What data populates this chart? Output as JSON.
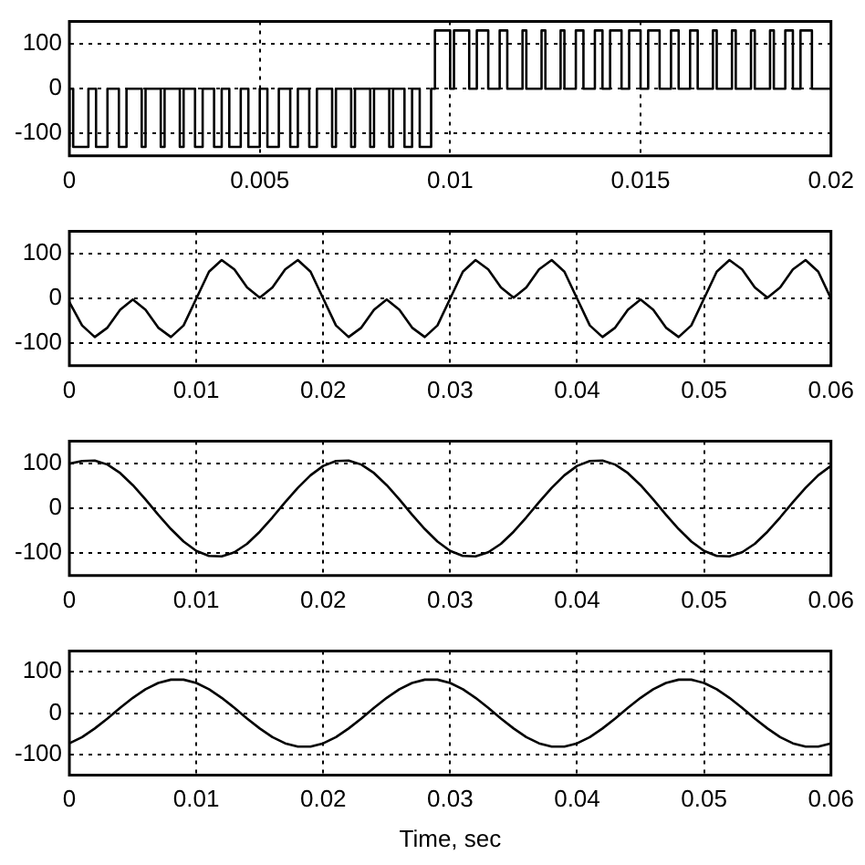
{
  "chart_data": [
    {
      "type": "step",
      "color": "#000000",
      "marker": "none",
      "grid": true,
      "legend": false,
      "x": [
        0,
        0.0001,
        0.0005,
        0.0007,
        0.001,
        0.0013,
        0.0015,
        0.0019,
        0.002,
        0.0024,
        0.0025,
        0.0029,
        0.003,
        0.0033,
        0.0035,
        0.0038,
        0.004,
        0.0042,
        0.0045,
        0.0047,
        0.005,
        0.0052,
        0.0055,
        0.0058,
        0.006,
        0.0063,
        0.0065,
        0.0069,
        0.007,
        0.0074,
        0.0075,
        0.0079,
        0.008,
        0.0084,
        0.0085,
        0.0088,
        0.009,
        0.0092,
        0.0095,
        0.0096,
        0.01,
        0.0101,
        0.0105,
        0.0107,
        0.011,
        0.0113,
        0.0115,
        0.0119,
        0.012,
        0.0124,
        0.0125,
        0.0129,
        0.013,
        0.0133,
        0.0135,
        0.0138,
        0.014,
        0.0142,
        0.0145,
        0.0147,
        0.015,
        0.0152,
        0.0155,
        0.0158,
        0.016,
        0.0163,
        0.0165,
        0.0169,
        0.017,
        0.0174,
        0.0175,
        0.0179,
        0.018,
        0.0184,
        0.0185,
        0.0188,
        0.019,
        0.0192,
        0.0195,
        0.0196,
        0.02
      ],
      "values": [
        -130,
        0,
        -130,
        0,
        -130,
        0,
        -130,
        0,
        -130,
        0,
        -130,
        0,
        -130,
        0,
        -130,
        0,
        -130,
        0,
        -130,
        0,
        -130,
        0,
        -130,
        0,
        -130,
        0,
        -130,
        0,
        -130,
        0,
        -130,
        0,
        -130,
        0,
        -130,
        0,
        -130,
        0,
        -130,
        0,
        130,
        0,
        130,
        0,
        130,
        0,
        130,
        0,
        130,
        0,
        130,
        0,
        130,
        0,
        130,
        0,
        130,
        0,
        130,
        0,
        130,
        0,
        130,
        0,
        130,
        0,
        130,
        0,
        130,
        0,
        130,
        0,
        130,
        0,
        130,
        0,
        130,
        0,
        130,
        0,
        0
      ],
      "xlim": [
        0,
        0.02
      ],
      "xticks": [
        0,
        0.005,
        0.01,
        0.015,
        0.02
      ],
      "ylim": [
        -150,
        150
      ],
      "yticks": [
        -100,
        0,
        100
      ]
    },
    {
      "type": "line",
      "color": "#000000",
      "marker": "none",
      "grid": true,
      "legend": false,
      "x": [
        0,
        0.001,
        0.002,
        0.003,
        0.004,
        0.005,
        0.006,
        0.007,
        0.008,
        0.009,
        0.01,
        0.011,
        0.012,
        0.013,
        0.014,
        0.015,
        0.016,
        0.017,
        0.018,
        0.019,
        0.02,
        0.021,
        0.022,
        0.023,
        0.024,
        0.025,
        0.026,
        0.027,
        0.028,
        0.029,
        0.03,
        0.031,
        0.032,
        0.033,
        0.034,
        0.035,
        0.036,
        0.037,
        0.038,
        0.039,
        0.04,
        0.041,
        0.042,
        0.043,
        0.044,
        0.045,
        0.046,
        0.047,
        0.048,
        0.049,
        0.05,
        0.051,
        0.052,
        0.053,
        0.054,
        0.055,
        0.056,
        0.057,
        0.058,
        0.059,
        0.06
      ],
      "values": [
        -8,
        -60,
        -86,
        -65,
        -25,
        -2,
        -25,
        -65,
        -86,
        -60,
        0,
        60,
        86,
        65,
        25,
        2,
        25,
        65,
        86,
        60,
        0,
        -60,
        -86,
        -65,
        -25,
        -2,
        -25,
        -65,
        -86,
        -60,
        0,
        60,
        86,
        65,
        25,
        2,
        25,
        65,
        86,
        60,
        0,
        -60,
        -86,
        -65,
        -25,
        -2,
        -25,
        -65,
        -86,
        -60,
        0,
        60,
        86,
        65,
        25,
        2,
        25,
        65,
        86,
        60,
        0
      ],
      "xlim": [
        0,
        0.06
      ],
      "xticks": [
        0,
        0.01,
        0.02,
        0.03,
        0.04,
        0.05,
        0.06
      ],
      "ylim": [
        -150,
        150
      ],
      "yticks": [
        -100,
        0,
        100
      ]
    },
    {
      "type": "line",
      "color": "#000000",
      "marker": "none",
      "grid": true,
      "legend": false,
      "x": [
        0,
        0.001,
        0.002,
        0.003,
        0.004,
        0.005,
        0.006,
        0.007,
        0.008,
        0.009,
        0.01,
        0.011,
        0.012,
        0.013,
        0.014,
        0.015,
        0.016,
        0.017,
        0.018,
        0.019,
        0.02,
        0.021,
        0.022,
        0.023,
        0.024,
        0.025,
        0.026,
        0.027,
        0.028,
        0.029,
        0.03,
        0.031,
        0.032,
        0.033,
        0.034,
        0.035,
        0.036,
        0.037,
        0.038,
        0.039,
        0.04,
        0.041,
        0.042,
        0.043,
        0.044,
        0.045,
        0.046,
        0.047,
        0.048,
        0.049,
        0.05,
        0.051,
        0.052,
        0.053,
        0.054,
        0.055,
        0.056,
        0.057,
        0.058,
        0.059,
        0.06
      ],
      "values": [
        100,
        106,
        107,
        98,
        79,
        52,
        20,
        -14,
        -46,
        -74,
        -95,
        -106,
        -107,
        -98,
        -79,
        -52,
        -20,
        14,
        46,
        74,
        95,
        106,
        107,
        98,
        79,
        52,
        20,
        -14,
        -46,
        -74,
        -95,
        -106,
        -107,
        -98,
        -79,
        -52,
        -20,
        14,
        46,
        74,
        95,
        106,
        107,
        98,
        79,
        52,
        20,
        -14,
        -46,
        -74,
        -95,
        -106,
        -107,
        -98,
        -79,
        -52,
        -20,
        14,
        46,
        74,
        95
      ],
      "xlim": [
        0,
        0.06
      ],
      "xticks": [
        0,
        0.01,
        0.02,
        0.03,
        0.04,
        0.05,
        0.06
      ],
      "ylim": [
        -150,
        150
      ],
      "yticks": [
        -100,
        0,
        100
      ]
    },
    {
      "type": "line",
      "color": "#000000",
      "marker": "none",
      "grid": true,
      "legend": false,
      "xlabel": "Time, sec",
      "x": [
        0,
        0.001,
        0.002,
        0.003,
        0.004,
        0.005,
        0.006,
        0.007,
        0.008,
        0.009,
        0.01,
        0.011,
        0.012,
        0.013,
        0.014,
        0.015,
        0.016,
        0.017,
        0.018,
        0.019,
        0.02,
        0.021,
        0.022,
        0.023,
        0.024,
        0.025,
        0.026,
        0.027,
        0.028,
        0.029,
        0.03,
        0.031,
        0.032,
        0.033,
        0.034,
        0.035,
        0.036,
        0.037,
        0.038,
        0.039,
        0.04,
        0.041,
        0.042,
        0.043,
        0.044,
        0.045,
        0.046,
        0.047,
        0.048,
        0.049,
        0.05,
        0.051,
        0.052,
        0.053,
        0.054,
        0.055,
        0.056,
        0.057,
        0.058,
        0.059,
        0.06
      ],
      "values": [
        -73,
        -58,
        -37,
        -13,
        13,
        37,
        58,
        73,
        81,
        81,
        73,
        58,
        37,
        13,
        -13,
        -37,
        -58,
        -73,
        -81,
        -81,
        -73,
        -58,
        -37,
        -13,
        13,
        37,
        58,
        73,
        81,
        81,
        73,
        58,
        37,
        13,
        -13,
        -37,
        -58,
        -73,
        -81,
        -81,
        -73,
        -58,
        -37,
        -13,
        13,
        37,
        58,
        73,
        81,
        81,
        73,
        58,
        37,
        13,
        -13,
        -37,
        -58,
        -73,
        -81,
        -81,
        -73
      ],
      "xlim": [
        0,
        0.06
      ],
      "xticks": [
        0,
        0.01,
        0.02,
        0.03,
        0.04,
        0.05,
        0.06
      ],
      "ylim": [
        -150,
        150
      ],
      "yticks": [
        -100,
        0,
        100
      ]
    }
  ]
}
